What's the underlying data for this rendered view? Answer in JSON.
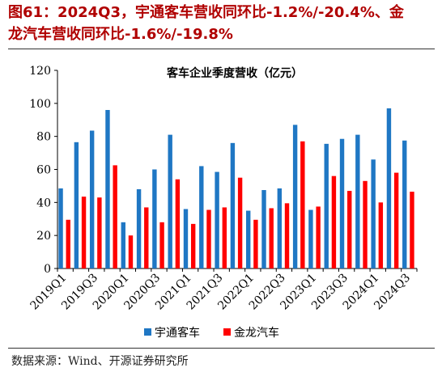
{
  "figure": {
    "title_line1": "图61：2024Q3，宇通客车营收同环比-1.2%/-20.4%、金",
    "title_line2": "龙汽车营收同环比-1.6%/-19.8%",
    "source": "数据来源：Wind、开源证券研究所"
  },
  "chart_data": {
    "type": "bar",
    "title": "客车企业季度营收（亿元）",
    "xlabel": "",
    "ylabel": "",
    "ylim": [
      0,
      120
    ],
    "yticks": [
      0,
      20,
      40,
      60,
      80,
      100,
      120
    ],
    "grid": false,
    "legend_position": "bottom",
    "categories": [
      "2019Q1",
      "2019Q2",
      "2019Q3",
      "2019Q4",
      "2020Q1",
      "2020Q2",
      "2020Q3",
      "2020Q4",
      "2021Q1",
      "2021Q2",
      "2021Q3",
      "2021Q4",
      "2022Q1",
      "2022Q2",
      "2022Q3",
      "2022Q4",
      "2023Q1",
      "2023Q2",
      "2023Q3",
      "2023Q4",
      "2024Q1",
      "2024Q2",
      "2024Q3"
    ],
    "xtick_labels": [
      "2019Q1",
      "",
      "2019Q3",
      "",
      "2020Q1",
      "",
      "2020Q3",
      "",
      "2021Q1",
      "",
      "2021Q3",
      "",
      "2022Q1",
      "",
      "2022Q3",
      "",
      "2023Q1",
      "",
      "2023Q3",
      "",
      "2024Q1",
      "",
      "2024Q3"
    ],
    "series": [
      {
        "name": "宇通客车",
        "color": "#1f77c4",
        "values": [
          48.5,
          76.5,
          83.5,
          96,
          28,
          48,
          60,
          81,
          36,
          62,
          58.5,
          76,
          35,
          47.5,
          48.5,
          87,
          35.5,
          75.5,
          78.5,
          81,
          66,
          97,
          77.5
        ]
      },
      {
        "name": "金龙汽车",
        "color": "#ff0000",
        "values": [
          29.5,
          43.5,
          43,
          62.5,
          20,
          37,
          28,
          54,
          27,
          35.5,
          37,
          55,
          29.5,
          36.5,
          39.5,
          77,
          37.5,
          56,
          47,
          53,
          40,
          58,
          46.5
        ]
      }
    ]
  }
}
